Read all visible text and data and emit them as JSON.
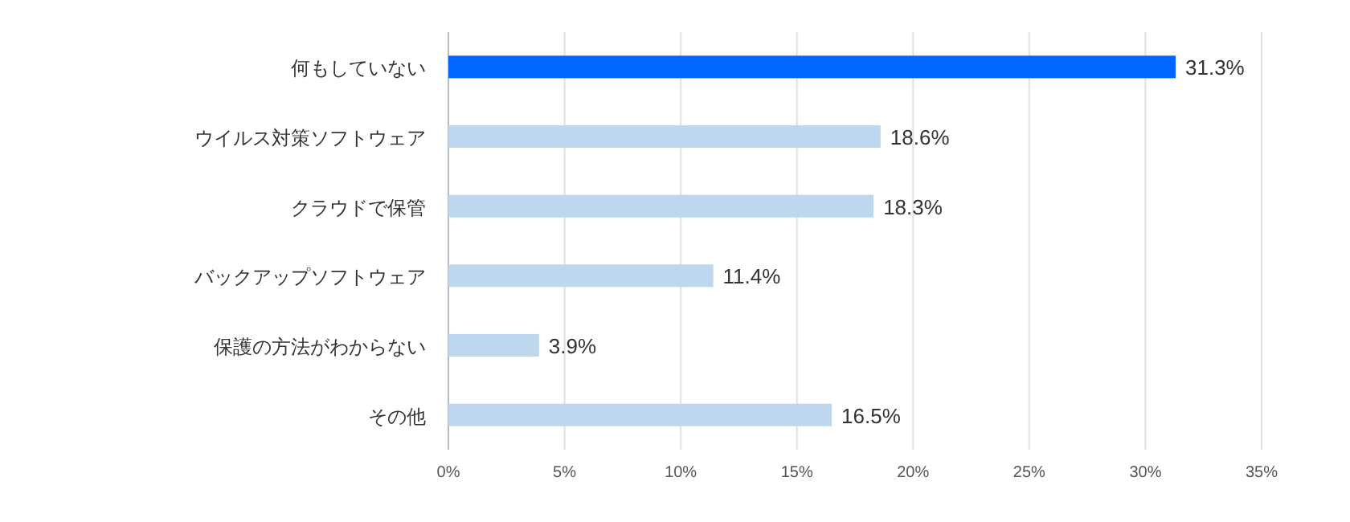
{
  "chart_data": {
    "type": "bar",
    "orientation": "horizontal",
    "categories": [
      "何もしていない",
      "ウイルス対策ソフトウェア",
      "クラウドで保管",
      "バックアップソフトウェア",
      "保護の方法がわからない",
      "その他"
    ],
    "values": [
      31.3,
      18.6,
      18.3,
      11.4,
      3.9,
      16.5
    ],
    "colors": [
      "#0066ff",
      "#bdd7ee",
      "#bdd7ee",
      "#bdd7ee",
      "#bdd7ee",
      "#bdd7ee"
    ],
    "value_labels": [
      "31.3%",
      "18.6%",
      "18.3%",
      "11.4%",
      "3.9%",
      "16.5%"
    ],
    "xlim": [
      0,
      35
    ],
    "xticks": [
      {
        "value": 0,
        "label": "0%"
      },
      {
        "value": 5,
        "label": "5%"
      },
      {
        "value": 10,
        "label": "10%"
      },
      {
        "value": 15,
        "label": "15%"
      },
      {
        "value": 20,
        "label": "20%"
      },
      {
        "value": 25,
        "label": "25%"
      },
      {
        "value": 30,
        "label": "30%"
      },
      {
        "value": 35,
        "label": "35%"
      }
    ],
    "grid": "x"
  }
}
